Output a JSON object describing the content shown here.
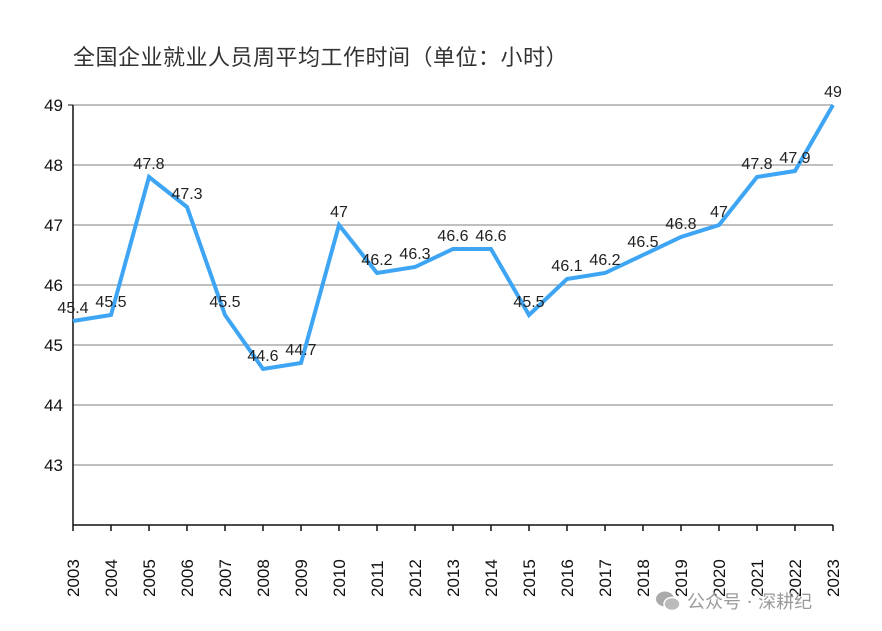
{
  "chart_data": {
    "type": "line",
    "title": "全国企业就业人员周平均工作时间（单位：小时）",
    "xlabel": "",
    "ylabel": "",
    "categories": [
      "2003",
      "2004",
      "2005",
      "2006",
      "2007",
      "2008",
      "2009",
      "2010",
      "2011",
      "2012",
      "2013",
      "2014",
      "2015",
      "2016",
      "2017",
      "2018",
      "2019",
      "2020",
      "2021",
      "2022",
      "2023"
    ],
    "values": [
      45.4,
      45.5,
      47.8,
      47.3,
      45.5,
      44.6,
      44.7,
      47,
      46.2,
      46.3,
      46.6,
      46.6,
      45.5,
      46.1,
      46.2,
      46.5,
      46.8,
      47,
      47.8,
      47.9,
      49
    ],
    "ylim": [
      42,
      49
    ],
    "yticks": [
      43,
      44,
      45,
      46,
      47,
      48,
      49
    ],
    "grid": true,
    "legend": "none",
    "line_color": "#3da5f4",
    "data_labels": true
  },
  "watermark": {
    "icon": "wechat-icon",
    "text": "公众号 · 深耕纪"
  }
}
